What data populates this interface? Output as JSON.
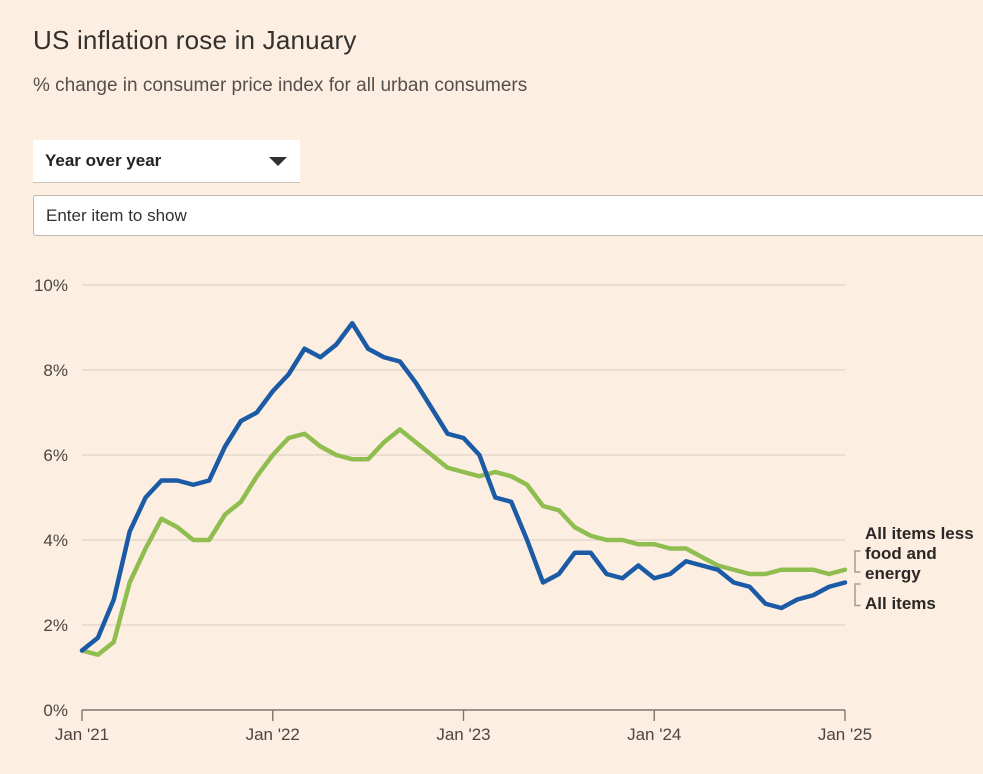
{
  "page": {
    "background_color": "#fdeee2"
  },
  "header": {
    "title": "US inflation rose in January",
    "subtitle": "% change in consumer price index for all urban consumers"
  },
  "controls": {
    "period_dropdown": {
      "value": "Year over year"
    },
    "item_input": {
      "placeholder": "Enter item to show"
    }
  },
  "chart_data": {
    "type": "line",
    "title": "US inflation rose in January",
    "ylabel": "% change in consumer price index",
    "ylim": [
      0,
      10
    ],
    "grid": true,
    "legend_position": "right-annotations",
    "x_unit": "month",
    "x_range": [
      "Jan 2021",
      "Jan 2025"
    ],
    "xticks": [
      "Jan '21",
      "Jan '22",
      "Jan '23",
      "Jan '24",
      "Jan '25"
    ],
    "yticks": [
      "0%",
      "2%",
      "4%",
      "6%",
      "8%",
      "10%"
    ],
    "series": [
      {
        "name": "All items",
        "color": "#1b5ba5",
        "values": [
          1.4,
          1.7,
          2.6,
          4.2,
          5.0,
          5.4,
          5.4,
          5.3,
          5.4,
          6.2,
          6.8,
          7.0,
          7.5,
          7.9,
          8.5,
          8.3,
          8.6,
          9.1,
          8.5,
          8.3,
          8.2,
          7.7,
          7.1,
          6.5,
          6.4,
          6.0,
          5.0,
          4.9,
          4.0,
          3.0,
          3.2,
          3.7,
          3.7,
          3.2,
          3.1,
          3.4,
          3.1,
          3.2,
          3.5,
          3.4,
          3.3,
          3.0,
          2.9,
          2.5,
          2.4,
          2.6,
          2.7,
          2.9,
          3.0
        ]
      },
      {
        "name": "All items less food and energy",
        "color": "#90bd4f",
        "values": [
          1.4,
          1.3,
          1.6,
          3.0,
          3.8,
          4.5,
          4.3,
          4.0,
          4.0,
          4.6,
          4.9,
          5.5,
          6.0,
          6.4,
          6.5,
          6.2,
          6.0,
          5.9,
          5.9,
          6.3,
          6.6,
          6.3,
          6.0,
          5.7,
          5.6,
          5.5,
          5.6,
          5.5,
          5.3,
          4.8,
          4.7,
          4.3,
          4.1,
          4.0,
          4.0,
          3.9,
          3.9,
          3.8,
          3.8,
          3.6,
          3.4,
          3.3,
          3.2,
          3.2,
          3.3,
          3.3,
          3.3,
          3.2,
          3.3
        ]
      }
    ],
    "colors": {
      "grid_line": "#d8cec0",
      "axis_line": "#7d766e",
      "tick_text": "#4b4641",
      "bracket": "#a39b91"
    }
  }
}
